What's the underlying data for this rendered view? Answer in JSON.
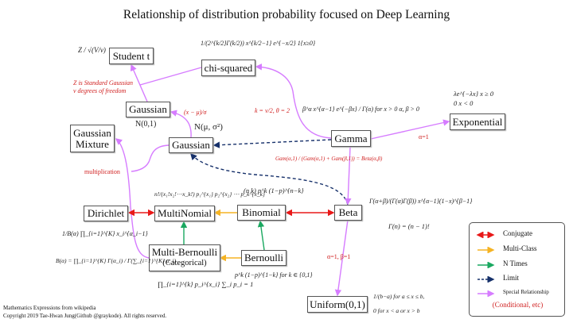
{
  "title": "Relationship of distribution probability focused on Deep Learning",
  "nodes": {
    "student_t": "Student t",
    "chi_squared": "chi-squared",
    "gaussian_std": "Gaussian",
    "gaussian_mixture": "Gaussian Mixture",
    "gaussian": "Gaussian",
    "gamma": "Gamma",
    "exponential": "Exponential",
    "dirichlet": "Dirichlet",
    "multinomial": "MultiNomial",
    "binomial": "Binomial",
    "beta": "Beta",
    "multi_bernoulli": "Multi-Bernoulli",
    "multi_bernoulli_sub": "(Categorical)",
    "bernoulli": "Bernoulli",
    "uniform": "Uniform(0,1)"
  },
  "formulas": {
    "student_t": "Z / √(V/ν)",
    "chi_squared": "1/(2^{k/2}Γ(k/2)) x^{k/2−1} e^{−x/2} 1{x≥0}",
    "gaussian_std": "N(0,1)",
    "gaussian": "N(μ, σ²)",
    "gamma": "β^α x^{α−1} e^{−βx} / Γ(α)   for x > 0   α, β > 0",
    "exponential_1": "λe^{−λx}   x ≥ 0",
    "exponential_2": "0          x < 0",
    "multinomial": "n!/(x₁!x₂!⋯x_k!) p₁^{x₁} p₂^{x₂} ⋯ p_k^{x_k}",
    "binomial": "(n k) p^k (1−p)^{n−k}",
    "beta": "Γ(α+β)/(Γ(α)Γ(β)) x^{α−1}(1−x)^{β−1}",
    "gamma_fn": "Γ(n) = (n − 1)!",
    "dirichlet": "1/B(α) ∏_{i=1}^{K} x_i^{α_i−1}",
    "beta_fn": "B(α) = ∏_{i=1}^{K} Γ(α_i) / Γ(∑_{i=1}^{K} α_i)",
    "multi_bernoulli": "∏_{i=1}^{k} p_i^{x_i}   ∑_i p_i = 1",
    "bernoulli": "p^k (1−p)^{1−k}   for k ∈ {0,1}",
    "uniform_1": "1/(b−a)   for a ≤ x ≤ b,",
    "uniform_2": "0   for x < a or x > b"
  },
  "annotations": {
    "student_t_1": "Z is Standard Gaussian",
    "student_t_2": "ν degrees of freedom",
    "standardize": "(x − μ)/σ",
    "chi_gamma": "k = ν/2, θ = 2",
    "mixture": "multiplication",
    "gamma_beta": "Gam(α,1) / (Gam(α,1) + Gam(β,1)) = Beta(α,β)",
    "exponential": "α=1",
    "uniform": "α=1,  β=1"
  },
  "legend": {
    "items": [
      {
        "label": "Conjugate",
        "color": "#e81818",
        "style": "double-arrow"
      },
      {
        "label": "Multi-Class",
        "color": "#f5b323",
        "style": "arrow"
      },
      {
        "label": "N Times",
        "color": "#1aa860",
        "style": "arrow"
      },
      {
        "label": "Limit",
        "color": "#16306a",
        "style": "dashed-arrow"
      },
      {
        "label": "Special Relationship",
        "color": "#d67cff",
        "style": "arrow"
      }
    ],
    "note": "(Conditional, etc)"
  },
  "footer": {
    "line1": "Mathematics Expressions from wikipedia",
    "line2": "Copyright 2019 Tae-Hwan Jung(Github @graykode). All rights reserved."
  }
}
